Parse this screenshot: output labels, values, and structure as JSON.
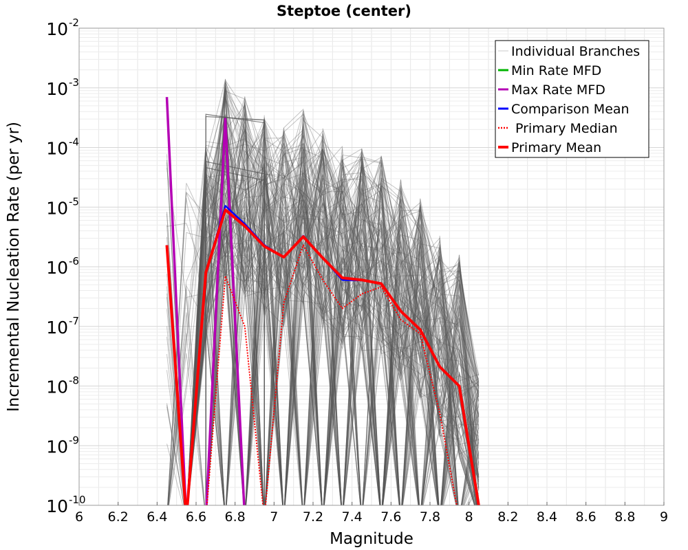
{
  "chart_data": {
    "type": "line",
    "title": "Steptoe (center)",
    "xlabel": "Magnitude",
    "ylabel": "Incremental Nucleation Rate (per yr)",
    "y_scale": "log",
    "xlim": [
      6,
      9
    ],
    "ylim": [
      1e-10,
      0.01
    ],
    "x_ticks": [
      "6",
      "6.2",
      "6.4",
      "6.6",
      "6.8",
      "7",
      "7.2",
      "7.4",
      "7.6",
      "7.8",
      "8",
      "8.2",
      "8.4",
      "8.6",
      "8.8",
      "9"
    ],
    "y_tick_bases": [
      "10",
      "10",
      "10",
      "10",
      "10",
      "10",
      "10",
      "10",
      "10"
    ],
    "y_tick_exponents": [
      "-10",
      "-9",
      "-8",
      "-7",
      "-6",
      "-5",
      "-4",
      "-3",
      "-2"
    ],
    "legend_position": "top-right",
    "legend": [
      {
        "name": "Individual Branches",
        "color": "#c8c8c8",
        "style": "thin"
      },
      {
        "name": "Min Rate MFD",
        "color": "#00b400",
        "style": "solid"
      },
      {
        "name": "Max Rate MFD",
        "color": "#b400b4",
        "style": "solid"
      },
      {
        "name": "Comparison Mean",
        "color": "#0000ff",
        "style": "solid"
      },
      {
        "name": " Primary Median",
        "color": "#ff0000",
        "style": "dotted"
      },
      {
        "name": "Primary Mean",
        "color": "#ff0000",
        "style": "thick"
      }
    ],
    "x": [
      6.45,
      6.55,
      6.65,
      6.75,
      6.85,
      6.95,
      7.05,
      7.15,
      7.25,
      7.35,
      7.45,
      7.55,
      7.65,
      7.75,
      7.85,
      7.95,
      8.05
    ],
    "series": [
      {
        "name": "Max Rate MFD",
        "color": "#b400b4",
        "values": [
          0.0007,
          null,
          null,
          0.0003,
          null,
          null,
          null,
          null,
          null,
          null,
          null,
          null,
          null,
          null,
          null,
          null,
          null
        ]
      },
      {
        "name": "Comparison Mean",
        "color": "#0000ff",
        "values": [
          2.3e-06,
          null,
          8e-07,
          1.05e-05,
          5.2e-06,
          2.3e-06,
          1.45e-06,
          3.3e-06,
          1.4e-06,
          6e-07,
          5.9e-07,
          5.3e-07,
          1.8e-07,
          8.8e-08,
          2.1e-08,
          1e-08,
          1e-10
        ]
      },
      {
        "name": "Primary Median",
        "color": "#ff0000",
        "values": [
          null,
          null,
          null,
          7e-07,
          1e-07,
          null,
          2.5e-07,
          2.3e-06,
          6e-07,
          2e-07,
          3.5e-07,
          4.6e-07,
          1.3e-07,
          7.5e-08,
          3.5e-09,
          null,
          null
        ]
      },
      {
        "name": "Primary Mean",
        "color": "#ff0000",
        "values": [
          2.3e-06,
          null,
          8e-07,
          9e-06,
          4.8e-06,
          2.2e-06,
          1.45e-06,
          3.2e-06,
          1.4e-06,
          6.5e-07,
          6e-07,
          5.2e-07,
          1.8e-07,
          8.8e-08,
          2.1e-08,
          1e-08,
          1e-10
        ]
      }
    ]
  }
}
